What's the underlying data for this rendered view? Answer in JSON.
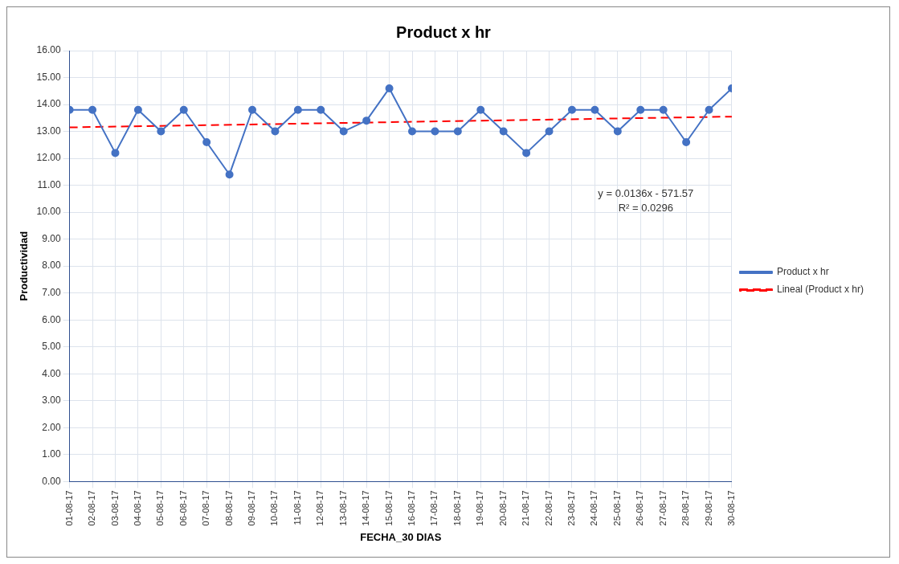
{
  "chart_data": {
    "type": "line",
    "title": "Product x hr",
    "xlabel": "FECHA_30 DIAS",
    "ylabel": "Productividad",
    "categories": [
      "01-08-17",
      "02-08-17",
      "03-08-17",
      "04-08-17",
      "05-08-17",
      "06-08-17",
      "07-08-17",
      "08-08-17",
      "09-08-17",
      "10-08-17",
      "11-08-17",
      "12-08-17",
      "13-08-17",
      "14-08-17",
      "15-08-17",
      "16-08-17",
      "17-08-17",
      "18-08-17",
      "19-08-17",
      "20-08-17",
      "21-08-17",
      "22-08-17",
      "23-08-17",
      "24-08-17",
      "25-08-17",
      "26-08-17",
      "27-08-17",
      "28-08-17",
      "29-08-17",
      "30-08-17"
    ],
    "series": [
      {
        "name": "Product x hr",
        "color": "#4472c4",
        "marker": "circle",
        "line_style": "solid",
        "values": [
          13.8,
          13.8,
          12.2,
          13.8,
          13.0,
          13.8,
          12.6,
          11.4,
          13.8,
          13.0,
          13.8,
          13.8,
          13.0,
          13.4,
          14.6,
          13.0,
          13.0,
          13.0,
          13.8,
          13.0,
          12.2,
          13.0,
          13.8,
          13.8,
          13.0,
          13.8,
          13.8,
          12.6,
          13.8,
          14.6
        ]
      },
      {
        "name": "Lineal (Product x hr)",
        "color": "#ff0000",
        "marker": "none",
        "line_style": "dashed",
        "x": [
          "01-08-17",
          "30-08-17"
        ],
        "values": [
          13.15,
          13.55
        ]
      }
    ],
    "ylim": [
      0,
      16
    ],
    "yticks": [
      {
        "value": 0,
        "label": "0.00"
      },
      {
        "value": 1,
        "label": "1.00"
      },
      {
        "value": 2,
        "label": "2.00"
      },
      {
        "value": 3,
        "label": "3.00"
      },
      {
        "value": 4,
        "label": "4.00"
      },
      {
        "value": 5,
        "label": "5.00"
      },
      {
        "value": 6,
        "label": "6.00"
      },
      {
        "value": 7,
        "label": "7.00"
      },
      {
        "value": 8,
        "label": "8.00"
      },
      {
        "value": 9,
        "label": "9.00"
      },
      {
        "value": 10,
        "label": "10.00"
      },
      {
        "value": 11,
        "label": "11.00"
      },
      {
        "value": 12,
        "label": "12.00"
      },
      {
        "value": 13,
        "label": "13.00"
      },
      {
        "value": 14,
        "label": "14.00"
      },
      {
        "value": 15,
        "label": "15.00"
      },
      {
        "value": 16,
        "label": "16.00"
      }
    ],
    "grid": true,
    "legend": "right",
    "annotations": [
      "y = 0.0136x - 571.57",
      "R² = 0.0296"
    ]
  }
}
